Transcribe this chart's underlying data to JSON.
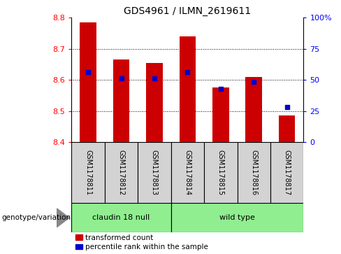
{
  "title": "GDS4961 / ILMN_2619611",
  "samples": [
    "GSM1178811",
    "GSM1178812",
    "GSM1178813",
    "GSM1178814",
    "GSM1178815",
    "GSM1178816",
    "GSM1178817"
  ],
  "bar_bottoms": [
    8.4,
    8.4,
    8.4,
    8.4,
    8.4,
    8.4,
    8.4
  ],
  "bar_tops": [
    8.785,
    8.665,
    8.655,
    8.74,
    8.575,
    8.61,
    8.487
  ],
  "percentile_values": [
    8.625,
    8.605,
    8.605,
    8.625,
    8.572,
    8.595,
    8.513
  ],
  "groups": [
    {
      "label": "claudin 18 null",
      "start": 0,
      "end": 3,
      "color": "#90EE90"
    },
    {
      "label": "wild type",
      "start": 3,
      "end": 7,
      "color": "#90EE90"
    }
  ],
  "ylim": [
    8.4,
    8.8
  ],
  "yticks": [
    8.4,
    8.5,
    8.6,
    8.7,
    8.8
  ],
  "right_yticks": [
    0,
    25,
    50,
    75,
    100
  ],
  "right_ytick_labels": [
    "0",
    "25",
    "50",
    "75",
    "100%"
  ],
  "bar_color": "#CC0000",
  "percentile_color": "#0000CC",
  "bar_width": 0.5,
  "bg_color": "#D3D3D3",
  "group_color": "#90EE90",
  "legend_bar_label": "transformed count",
  "legend_pct_label": "percentile rank within the sample",
  "genotype_label": "genotype/variation"
}
